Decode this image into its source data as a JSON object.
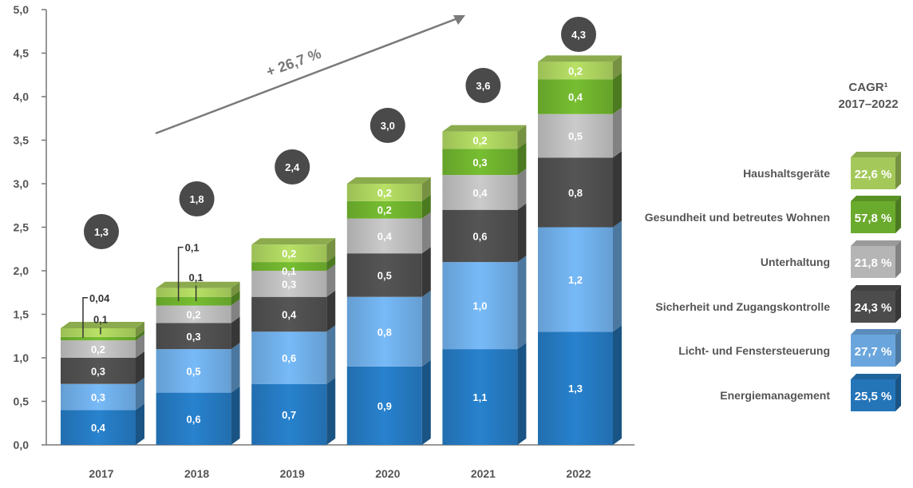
{
  "chart_data": {
    "type": "bar",
    "stacked": true,
    "categories": [
      "2017",
      "2018",
      "2019",
      "2020",
      "2021",
      "2022"
    ],
    "ylim": [
      0,
      5.0
    ],
    "y_ticks": [
      "0,0",
      "0,5",
      "1,0",
      "1,5",
      "2,0",
      "2,5",
      "3,0",
      "3,5",
      "4,0",
      "4,5",
      "5,0"
    ],
    "series": [
      {
        "name": "Energiemanagement",
        "values": [
          0.4,
          0.6,
          0.7,
          0.9,
          1.1,
          1.3
        ],
        "labels": [
          "0,4",
          "0,6",
          "0,7",
          "0,9",
          "1,1",
          "1,3"
        ],
        "color": "#2474b8",
        "cagr": "25,5 %"
      },
      {
        "name": "Licht- und Fenstersteuerung",
        "values": [
          0.3,
          0.5,
          0.6,
          0.8,
          1.0,
          1.2
        ],
        "labels": [
          "0,3",
          "0,5",
          "0,6",
          "0,8",
          "1,0",
          "1,2"
        ],
        "color": "#6aa6dd",
        "cagr": "27,7 %"
      },
      {
        "name": "Sicherheit und Zugangskontrolle",
        "values": [
          0.3,
          0.3,
          0.4,
          0.5,
          0.6,
          0.8
        ],
        "labels": [
          "0,3",
          "0,3",
          "0,4",
          "0,5",
          "0,6",
          "0,8"
        ],
        "color": "#4c4c4c",
        "cagr": "24,3 %"
      },
      {
        "name": "Unterhaltung",
        "values": [
          0.2,
          0.2,
          0.3,
          0.4,
          0.4,
          0.5
        ],
        "labels": [
          "0,2",
          "0,2",
          "0,3",
          "0,4",
          "0,4",
          "0,5"
        ],
        "color": "#b5b5b5",
        "cagr": "21,8 %"
      },
      {
        "name": "Gesundheit und betreutes Wohnen",
        "values": [
          0.04,
          0.1,
          0.1,
          0.2,
          0.3,
          0.4
        ],
        "labels": [
          "0,04",
          "0,1",
          "0,1",
          "0,2",
          "0,3",
          "0,4"
        ],
        "color": "#6aaa2c",
        "cagr": "57,8 %"
      },
      {
        "name": "Haushaltsgeräte",
        "values": [
          0.1,
          0.1,
          0.2,
          0.2,
          0.2,
          0.2
        ],
        "labels": [
          "0,1",
          "0,1",
          "0,2",
          "0,2",
          "0,2",
          "0,2"
        ],
        "color": "#a4c95a",
        "cagr": "22,6 %"
      }
    ],
    "totals": [
      "1,3",
      "1,8",
      "2,4",
      "3,0",
      "3,6",
      "4,3"
    ],
    "growth_label": "+ 26,7 %",
    "cagr_title": [
      "CAGR¹",
      "2017–2022"
    ],
    "legend_order": [
      "Haushaltsgeräte",
      "Gesundheit und betreutes Wohnen",
      "Unterhaltung",
      "Sicherheit und Zugangskontrolle",
      "Licht- und Fenstersteuerung",
      "Energiemanagement"
    ]
  }
}
